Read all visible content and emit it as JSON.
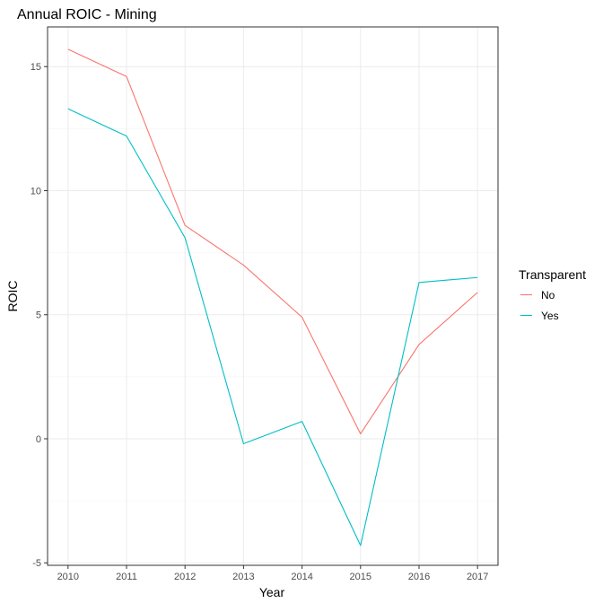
{
  "chart_data": {
    "type": "line",
    "title": "Annual ROIC - Mining",
    "xlabel": "Year",
    "ylabel": "ROIC",
    "x": [
      2010,
      2011,
      2012,
      2013,
      2014,
      2015,
      2016,
      2017
    ],
    "x_tick_labels": [
      "2010",
      "2011",
      "2012",
      "2013",
      "2014",
      "2015",
      "2016",
      "2017"
    ],
    "y_ticks": [
      -5,
      0,
      5,
      10,
      15
    ],
    "y_tick_labels": [
      "-5",
      "0",
      "5",
      "10",
      "15"
    ],
    "ylim": [
      -5.1,
      16.6
    ],
    "grid": true,
    "legend": {
      "title": "Transparent",
      "position": "right"
    },
    "series": [
      {
        "name": "No",
        "color": "#F8766D",
        "values": [
          15.7,
          14.6,
          8.6,
          7.0,
          4.9,
          0.2,
          3.8,
          5.9
        ]
      },
      {
        "name": "Yes",
        "color": "#00BFC4",
        "values": [
          13.3,
          12.2,
          8.1,
          -0.2,
          0.7,
          -4.3,
          6.3,
          6.5
        ]
      }
    ]
  }
}
